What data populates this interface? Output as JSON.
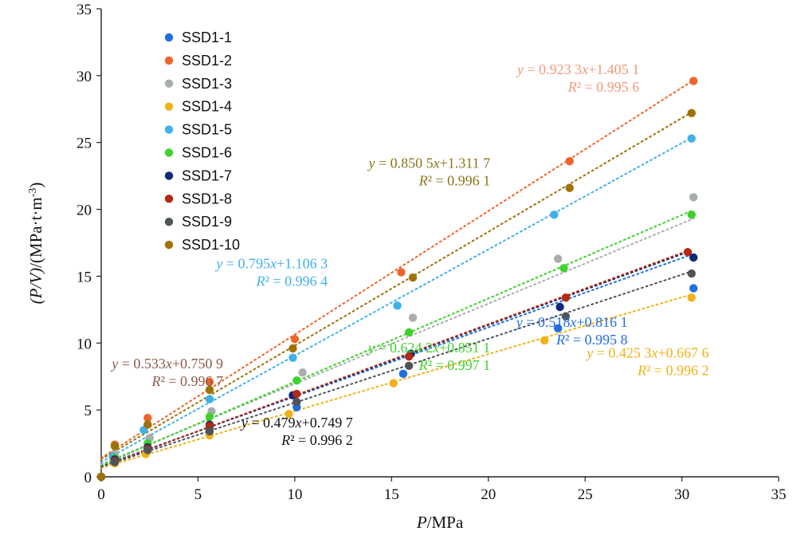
{
  "chart_data": {
    "type": "scatter",
    "title": "",
    "xlabel_italic": "P",
    "xlabel_unit": "/MPa",
    "ylabel_italic": "(P/V)",
    "ylabel_unit": "/(MPa·t·m",
    "ylabel_sup": "-3",
    "ylabel_close": ")",
    "xlim": [
      0,
      35
    ],
    "ylim": [
      0,
      35
    ],
    "xticks": [
      "0",
      "5",
      "10",
      "15",
      "20",
      "25",
      "30",
      "35"
    ],
    "yticks": [
      "0",
      "5",
      "10",
      "15",
      "20",
      "25",
      "30",
      "35"
    ],
    "grid": false,
    "legend_position": "top-left",
    "series": [
      {
        "name": "SSD1-1",
        "color": "#1f6fe0",
        "x": [
          0,
          0.7,
          2.4,
          5.6,
          10.1,
          15.6,
          23.6,
          30.6
        ],
        "y": [
          0,
          1.2,
          2.0,
          3.7,
          5.2,
          7.7,
          11.1,
          14.1
        ],
        "fit": {
          "slope": 0.518,
          "intercept": 0.8161
        }
      },
      {
        "name": "SSD1-2",
        "color": "#f0642a",
        "x": [
          0,
          0.7,
          2.4,
          5.6,
          10.0,
          15.5,
          24.2,
          30.6
        ],
        "y": [
          0,
          2.4,
          4.4,
          7.1,
          10.3,
          15.3,
          23.6,
          29.6
        ],
        "fit": {
          "slope": 0.9233,
          "intercept": 1.4051
        }
      },
      {
        "name": "SSD1-3",
        "color": "#a8aeae",
        "x": [
          0,
          0.7,
          2.5,
          5.7,
          10.4,
          16.1,
          23.6,
          30.6
        ],
        "y": [
          0,
          1.7,
          2.9,
          4.9,
          7.8,
          11.9,
          16.3,
          20.9
        ],
        "fit": {
          "slope": 0.6,
          "intercept": 0.95
        }
      },
      {
        "name": "SSD1-4",
        "color": "#f0b216",
        "x": [
          0,
          0.7,
          2.3,
          5.6,
          9.7,
          15.1,
          22.9,
          30.5
        ],
        "y": [
          0,
          1.0,
          1.7,
          3.1,
          4.7,
          7.0,
          10.2,
          13.4
        ],
        "fit": {
          "slope": 0.4253,
          "intercept": 0.6676
        }
      },
      {
        "name": "SSD1-5",
        "color": "#3fb0ea",
        "x": [
          0,
          0.6,
          2.2,
          5.6,
          9.9,
          15.3,
          23.4,
          30.5
        ],
        "y": [
          0,
          1.5,
          3.5,
          5.8,
          8.9,
          12.8,
          19.6,
          25.3
        ],
        "fit": {
          "slope": 0.795,
          "intercept": 1.1063
        }
      },
      {
        "name": "SSD1-6",
        "color": "#3fd22e",
        "x": [
          0,
          0.7,
          2.4,
          5.6,
          10.1,
          15.9,
          23.9,
          30.5
        ],
        "y": [
          0,
          1.4,
          2.5,
          4.5,
          7.2,
          10.8,
          15.6,
          19.6
        ],
        "fit": {
          "slope": 0.6242,
          "intercept": 0.8511
        }
      },
      {
        "name": "SSD1-7",
        "color": "#0f2a7a",
        "x": [
          0,
          0.7,
          2.4,
          5.6,
          9.9,
          16.0,
          23.7,
          30.6
        ],
        "y": [
          0,
          1.3,
          2.2,
          3.9,
          6.1,
          9.2,
          12.7,
          16.4
        ],
        "fit": {
          "slope": 0.53,
          "intercept": 0.75
        }
      },
      {
        "name": "SSD1-8",
        "color": "#b22a12",
        "x": [
          0,
          0.7,
          2.4,
          5.6,
          10.1,
          15.9,
          24.0,
          30.3
        ],
        "y": [
          0,
          1.2,
          2.1,
          3.8,
          6.2,
          9.0,
          13.4,
          16.8
        ],
        "fit": {
          "slope": 0.533,
          "intercept": 0.7509
        }
      },
      {
        "name": "SSD1-9",
        "color": "#4e5457",
        "x": [
          0,
          0.7,
          2.4,
          5.6,
          10.1,
          15.9,
          24.0,
          30.5
        ],
        "y": [
          0,
          1.1,
          2.0,
          3.4,
          5.6,
          8.3,
          12.0,
          15.2
        ],
        "fit": {
          "slope": 0.479,
          "intercept": 0.7497
        }
      },
      {
        "name": "SSD1-10",
        "color": "#9e7208",
        "x": [
          0,
          0.7,
          2.4,
          5.6,
          9.9,
          16.1,
          24.2,
          30.5
        ],
        "y": [
          0,
          2.3,
          3.9,
          6.5,
          9.6,
          14.9,
          21.6,
          27.2
        ],
        "fit": {
          "slope": 0.8505,
          "intercept": 1.3117
        }
      }
    ],
    "annotations": [
      {
        "eq": "y = 0.923 3x+1.405 1",
        "r2": "R² = 0.995 6",
        "color": "#f29a7a",
        "x": 27.8,
        "y": 30.1
      },
      {
        "eq": "y = 0.850 5x+1.311 7",
        "r2": "R² = 0.996 1",
        "color": "#8c7415",
        "x": 20.1,
        "y": 23.1
      },
      {
        "eq": "y = 0.795x+1.106 3",
        "r2": "R² = 0.996 4",
        "color": "#3fb0ea",
        "x": 11.7,
        "y": 15.6
      },
      {
        "eq": "y = 0.518x+0.816 1",
        "r2": "R² = 0.995 8",
        "color": "#1f6fe0",
        "x": 27.2,
        "y": 11.2
      },
      {
        "eq": "y = 0.624 2x+0.851 1",
        "r2": "R² = 0.997 1",
        "color": "#3fd22e",
        "x": 20.1,
        "y": 9.3
      },
      {
        "eq": "y = 0.425 3x+0.667 6",
        "r2": "R² = 0.996 2",
        "color": "#f0b216",
        "x": 31.4,
        "y": 8.9
      },
      {
        "eq": "y = 0.533x+0.750 9",
        "r2": "R² = 0.996 7",
        "color": "#8b5a4a",
        "x": 6.3,
        "y": 8.1
      },
      {
        "eq": "y = 0.479x+0.749 7",
        "r2": "R² = 0.996 2",
        "color": "#111111",
        "x": 13.0,
        "y": 3.7
      }
    ]
  }
}
